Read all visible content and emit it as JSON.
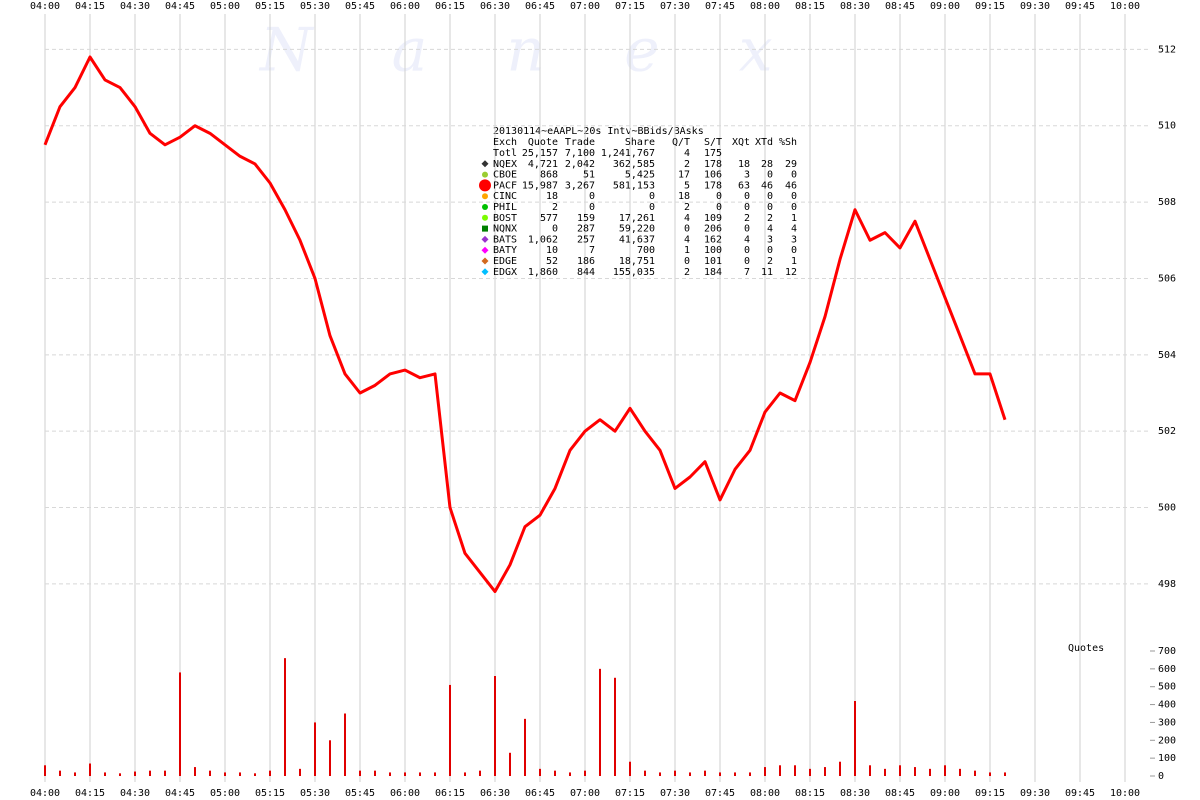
{
  "chart_data": [
    {
      "type": "line",
      "watermark": "N a n e x",
      "title": "20130114~eAAPL~20s Intv~BBids/BAsks",
      "x": [
        "04:00",
        "04:05",
        "04:10",
        "04:15",
        "04:20",
        "04:25",
        "04:30",
        "04:35",
        "04:40",
        "04:45",
        "04:50",
        "04:55",
        "05:00",
        "05:05",
        "05:10",
        "05:15",
        "05:20",
        "05:25",
        "05:30",
        "05:35",
        "05:40",
        "05:45",
        "05:50",
        "05:55",
        "06:00",
        "06:05",
        "06:10",
        "06:15",
        "06:20",
        "06:25",
        "06:30",
        "06:35",
        "06:40",
        "06:45",
        "06:50",
        "06:55",
        "07:00",
        "07:05",
        "07:10",
        "07:15",
        "07:20",
        "07:25",
        "07:30",
        "07:35",
        "07:40",
        "07:45",
        "07:50",
        "07:55",
        "08:00",
        "08:05",
        "08:10",
        "08:15",
        "08:20",
        "08:25",
        "08:30",
        "08:35",
        "08:40",
        "08:45",
        "08:50",
        "08:55",
        "09:00",
        "09:05",
        "09:10",
        "09:15",
        "09:20"
      ],
      "series": [
        {
          "color": "#ff0000",
          "values": [
            509.5,
            510.5,
            511.0,
            511.8,
            511.2,
            511.0,
            510.5,
            509.8,
            509.5,
            509.7,
            510.0,
            509.8,
            509.5,
            509.2,
            509.0,
            508.5,
            507.8,
            507.0,
            506.0,
            504.5,
            503.5,
            503.0,
            503.2,
            503.5,
            503.6,
            503.4,
            503.5,
            500.0,
            498.8,
            498.3,
            497.8,
            498.5,
            499.5,
            499.8,
            500.5,
            501.5,
            502.0,
            502.3,
            502.0,
            502.6,
            502.0,
            501.5,
            500.5,
            500.8,
            501.2,
            500.2,
            501.0,
            501.5,
            502.5,
            503.0,
            502.8,
            503.8,
            505.0,
            506.5,
            507.8,
            507.0,
            507.2,
            506.8,
            507.5,
            506.5,
            505.5,
            504.5,
            503.5,
            503.5,
            502.3
          ]
        }
      ],
      "xticks": [
        "04:00",
        "04:15",
        "04:30",
        "04:45",
        "05:00",
        "05:15",
        "05:30",
        "05:45",
        "06:00",
        "06:15",
        "06:30",
        "06:45",
        "07:00",
        "07:15",
        "07:30",
        "07:45",
        "08:00",
        "08:15",
        "08:30",
        "08:45",
        "09:00",
        "09:15",
        "09:30",
        "09:45",
        "10:00"
      ],
      "ylim": [
        496.4,
        512.9
      ],
      "yticks": [
        498,
        500,
        502,
        504,
        506,
        508,
        510,
        512
      ],
      "grid": true,
      "table": {
        "header": [
          "Exch",
          "Quote",
          "Trade",
          "Share",
          "Q/T",
          "S/T",
          "XQt",
          "XTd",
          "%Sh"
        ],
        "rows": [
          {
            "cells": [
              "Totl",
              "25,157",
              "7,100",
              "1,241,767",
              "4",
              "175"
            ]
          },
          {
            "marker": "#333333",
            "shape": "diamond",
            "cells": [
              "NQEX",
              "4,721",
              "2,042",
              "362,585",
              "2",
              "178",
              "18",
              "28",
              "29"
            ]
          },
          {
            "marker": "#9acd32",
            "shape": "circle",
            "cells": [
              "CBOE",
              "868",
              "51",
              "5,425",
              "17",
              "106",
              "3",
              "0",
              "0"
            ]
          },
          {
            "marker": "#ff0000",
            "shape": "bigcircle",
            "cells": [
              "PACF",
              "15,987",
              "3,267",
              "581,153",
              "5",
              "178",
              "63",
              "46",
              "46"
            ]
          },
          {
            "marker": "#ffa500",
            "shape": "circle",
            "cells": [
              "CINC",
              "18",
              "0",
              "0",
              "18",
              "0",
              "0",
              "0",
              "0"
            ]
          },
          {
            "marker": "#00c000",
            "shape": "circle",
            "cells": [
              "PHIL",
              "2",
              "0",
              "0",
              "2",
              "0",
              "0",
              "0",
              "0"
            ]
          },
          {
            "marker": "#7cfc00",
            "shape": "circle",
            "cells": [
              "BOST",
              "577",
              "159",
              "17,261",
              "4",
              "109",
              "2",
              "2",
              "1"
            ]
          },
          {
            "marker": "#008000",
            "shape": "square",
            "cells": [
              "NQNX",
              "0",
              "287",
              "59,220",
              "0",
              "206",
              "0",
              "4",
              "4"
            ]
          },
          {
            "marker": "#9932cc",
            "shape": "diamond",
            "cells": [
              "BATS",
              "1,062",
              "257",
              "41,637",
              "4",
              "162",
              "4",
              "3",
              "3"
            ]
          },
          {
            "marker": "#ff00ff",
            "shape": "diamond",
            "cells": [
              "BATY",
              "10",
              "7",
              "700",
              "1",
              "100",
              "0",
              "0",
              "0"
            ]
          },
          {
            "marker": "#d2691e",
            "shape": "diamond",
            "cells": [
              "EDGE",
              "52",
              "186",
              "18,751",
              "0",
              "101",
              "0",
              "2",
              "1"
            ]
          },
          {
            "marker": "#00bfff",
            "shape": "diamond",
            "cells": [
              "EDGX",
              "1,860",
              "844",
              "155,035",
              "2",
              "184",
              "7",
              "11",
              "12"
            ]
          }
        ]
      }
    },
    {
      "type": "bar",
      "title": "Quotes",
      "color": "#e00000",
      "x": [
        "04:00",
        "04:05",
        "04:10",
        "04:15",
        "04:20",
        "04:25",
        "04:30",
        "04:35",
        "04:40",
        "04:45",
        "04:50",
        "04:55",
        "05:00",
        "05:05",
        "05:10",
        "05:15",
        "05:20",
        "05:25",
        "05:30",
        "05:35",
        "05:40",
        "05:45",
        "05:50",
        "05:55",
        "06:00",
        "06:05",
        "06:10",
        "06:15",
        "06:20",
        "06:25",
        "06:30",
        "06:35",
        "06:40",
        "06:45",
        "06:50",
        "06:55",
        "07:00",
        "07:05",
        "07:10",
        "07:15",
        "07:20",
        "07:25",
        "07:30",
        "07:35",
        "07:40",
        "07:45",
        "07:50",
        "07:55",
        "08:00",
        "08:05",
        "08:10",
        "08:15",
        "08:20",
        "08:25",
        "08:30",
        "08:35",
        "08:40",
        "08:45",
        "08:50",
        "08:55",
        "09:00",
        "09:05",
        "09:10",
        "09:15",
        "09:20"
      ],
      "values": [
        60,
        30,
        20,
        70,
        20,
        15,
        25,
        30,
        30,
        580,
        50,
        30,
        20,
        20,
        15,
        30,
        660,
        40,
        300,
        200,
        350,
        30,
        30,
        20,
        20,
        20,
        20,
        510,
        20,
        30,
        560,
        130,
        320,
        40,
        30,
        20,
        30,
        600,
        550,
        80,
        30,
        20,
        30,
        20,
        30,
        20,
        20,
        20,
        50,
        60,
        60,
        40,
        50,
        80,
        420,
        60,
        40,
        60,
        50,
        40,
        60,
        40,
        30,
        20,
        20
      ],
      "ylim": [
        0,
        700
      ],
      "yticks": [
        0,
        100,
        200,
        300,
        400,
        500,
        600,
        700
      ]
    }
  ]
}
